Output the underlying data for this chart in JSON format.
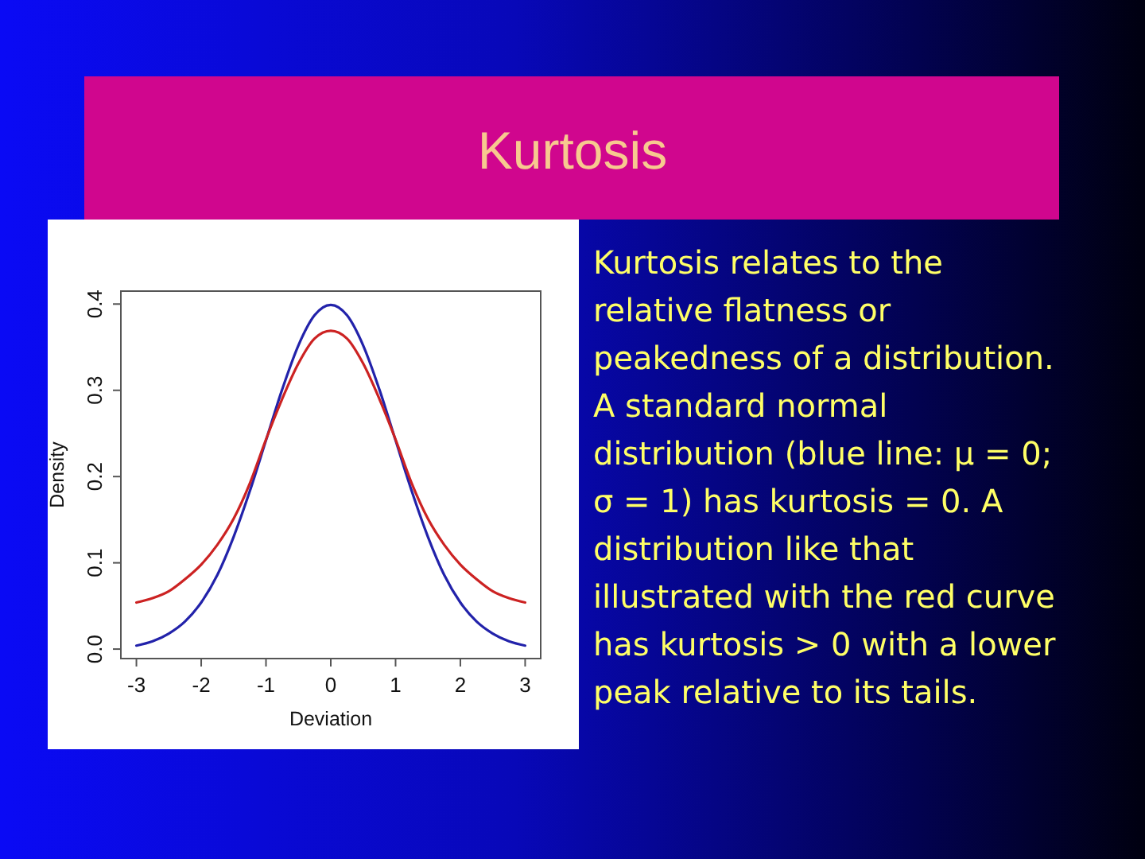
{
  "chart_data": {
    "type": "line",
    "title": "Kurtosis",
    "xlabel": "Deviation",
    "ylabel": "Density",
    "x": [
      -3,
      -2.75,
      -2.5,
      -2.25,
      -2,
      -1.75,
      -1.5,
      -1.25,
      -1,
      -0.75,
      -0.5,
      -0.25,
      0,
      0.25,
      0.5,
      0.75,
      1,
      1.25,
      1.5,
      1.75,
      2,
      2.25,
      2.5,
      2.75,
      3
    ],
    "series": [
      {
        "color": "#2222aa",
        "values": [
          0.004,
          0.009,
          0.018,
          0.032,
          0.054,
          0.086,
          0.13,
          0.183,
          0.242,
          0.301,
          0.352,
          0.387,
          0.399,
          0.387,
          0.352,
          0.301,
          0.242,
          0.183,
          0.13,
          0.086,
          0.054,
          0.032,
          0.018,
          0.009,
          0.004
        ]
      },
      {
        "color": "#cc2222",
        "values": [
          0.054,
          0.059,
          0.067,
          0.081,
          0.098,
          0.121,
          0.151,
          0.192,
          0.243,
          0.29,
          0.331,
          0.36,
          0.369,
          0.36,
          0.331,
          0.29,
          0.243,
          0.192,
          0.151,
          0.121,
          0.098,
          0.081,
          0.067,
          0.059,
          0.054
        ]
      }
    ],
    "xlim": [
      -3.24,
      3.24
    ],
    "ylim": [
      -0.011,
      0.415
    ],
    "xticks": [
      -3,
      -2,
      -1,
      0,
      1,
      2,
      3
    ],
    "yticks": [
      {
        "value": 0,
        "label": "0.0"
      },
      0.1,
      0.2,
      0.3,
      0.4
    ],
    "annotations": [
      "Kurtosis relates to the relative flatness or peakedness of a distribution. A standard normal distribution (blue line: μ = 0; σ = 1) has kurtosis = 0. A distribution like that illustrated with the red curve has kurtosis > 0 with a lower peak relative to its tails."
    ]
  }
}
